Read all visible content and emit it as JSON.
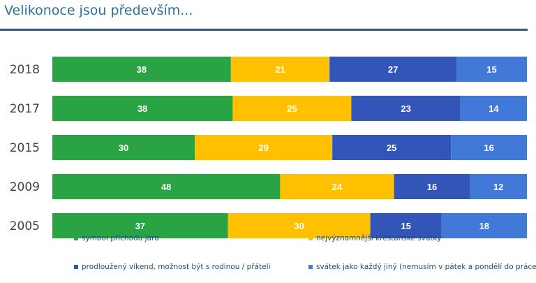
{
  "page": {
    "title": "Velikonoce jsou především..."
  },
  "colors": {
    "green": "#2aa345",
    "yellow": "#ffc000",
    "dark_blue": "#3355b8",
    "light_blue": "#4278d8",
    "rule": "#1f5c8a",
    "title": "#2e6f9e"
  },
  "chart_data": {
    "type": "bar",
    "orientation": "horizontal",
    "stacked": true,
    "normalized": true,
    "categories": [
      "2018",
      "2017",
      "2015",
      "2009",
      "2005"
    ],
    "series": [
      {
        "name": "symbol příchodu jara",
        "color": "#2aa345",
        "values": [
          38,
          38,
          30,
          48,
          37
        ]
      },
      {
        "name": "nejvýznamnější křesťanské svátky",
        "color": "#ffc000",
        "values": [
          21,
          25,
          29,
          24,
          30
        ]
      },
      {
        "name": "prodloužený víkend, možnost být s rodinou / přáteli",
        "color": "#3355b8",
        "values": [
          27,
          23,
          25,
          16,
          15
        ]
      },
      {
        "name": "svátek jako každý jiný (nemusím v pátek a pondělí do práce)",
        "color": "#4278d8",
        "values": [
          15,
          14,
          16,
          12,
          18
        ]
      }
    ],
    "data_labels": true,
    "grid": false,
    "legend_position": "bottom"
  }
}
